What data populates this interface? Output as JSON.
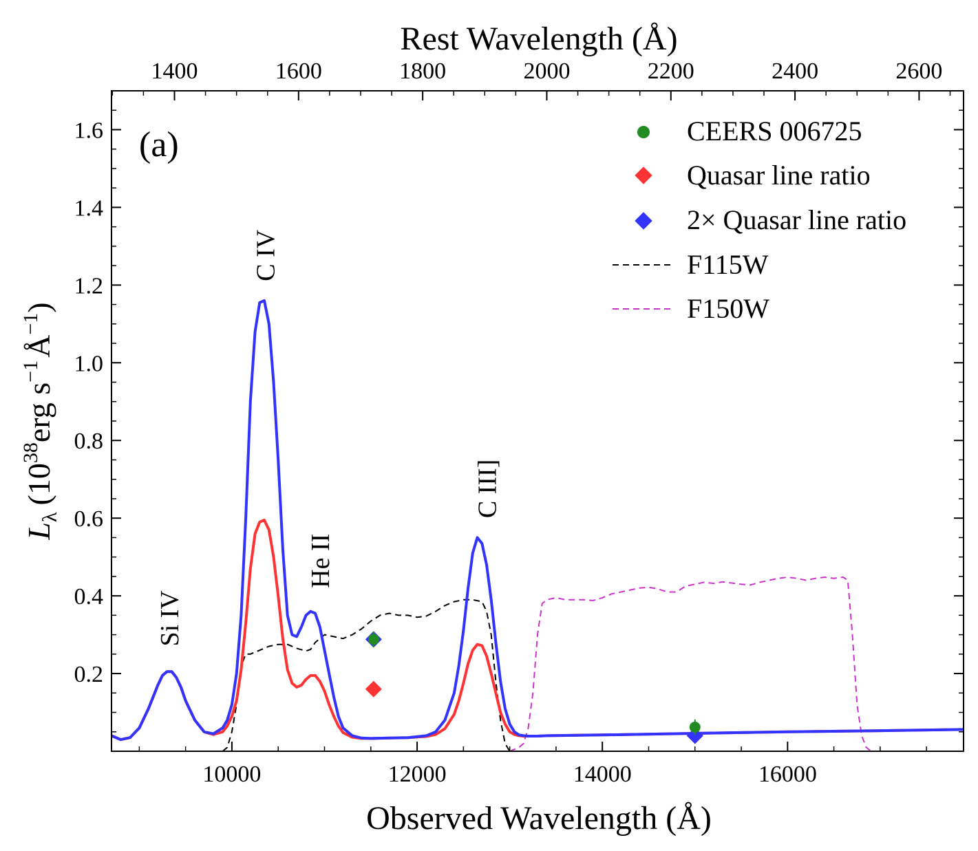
{
  "chart_data": {
    "type": "line",
    "panel_label": "(a)",
    "xlabel": "Observed Wavelength (Å)",
    "x2label": "Rest Wavelength (Å)",
    "ylabel_parts": [
      "L",
      "λ",
      "(10",
      "38",
      "erg s",
      "−1",
      "Å",
      "−1",
      ")"
    ],
    "xlim": [
      8700,
      17900
    ],
    "ylim": [
      0,
      1.7
    ],
    "x_ticks": [
      10000,
      12000,
      14000,
      16000
    ],
    "x_tick_labels": [
      "10000",
      "12000",
      "14000",
      "16000"
    ],
    "x2_ticks": [
      1400,
      1600,
      1800,
      2000,
      2200,
      2400,
      2600
    ],
    "x2_tick_labels": [
      "1400",
      "1600",
      "1800",
      "2000",
      "2200",
      "2400",
      "2600"
    ],
    "y_ticks": [
      0.2,
      0.4,
      0.6,
      0.8,
      1.0,
      1.2,
      1.4,
      1.6
    ],
    "y_tick_labels": [
      "0.2",
      "0.4",
      "0.6",
      "0.8",
      "1.0",
      "1.2",
      "1.4",
      "1.6"
    ],
    "series": [
      {
        "key": "blue_model",
        "color": "#3333ff",
        "style": "solid",
        "x": [
          8700,
          8800,
          8900,
          9000,
          9100,
          9200,
          9250,
          9300,
          9350,
          9400,
          9450,
          9500,
          9600,
          9700,
          9800,
          9900,
          9950,
          10000,
          10050,
          10100,
          10150,
          10200,
          10250,
          10300,
          10350,
          10400,
          10450,
          10500,
          10550,
          10600,
          10650,
          10700,
          10750,
          10800,
          10850,
          10900,
          10950,
          11000,
          11050,
          11100,
          11150,
          11200,
          11300,
          11400,
          11500,
          11700,
          11900,
          12100,
          12200,
          12300,
          12400,
          12450,
          12500,
          12550,
          12600,
          12650,
          12700,
          12750,
          12800,
          12850,
          12900,
          12950,
          13000,
          13050,
          13100,
          13150,
          13200,
          13300,
          13400,
          14000,
          15000,
          16000,
          17000,
          17900
        ],
        "y": [
          0.04,
          0.03,
          0.035,
          0.06,
          0.11,
          0.17,
          0.195,
          0.205,
          0.205,
          0.19,
          0.165,
          0.13,
          0.08,
          0.05,
          0.045,
          0.06,
          0.08,
          0.12,
          0.2,
          0.35,
          0.6,
          0.9,
          1.08,
          1.155,
          1.16,
          1.1,
          0.95,
          0.75,
          0.52,
          0.35,
          0.3,
          0.295,
          0.32,
          0.35,
          0.36,
          0.355,
          0.32,
          0.26,
          0.2,
          0.14,
          0.09,
          0.06,
          0.04,
          0.034,
          0.033,
          0.034,
          0.035,
          0.04,
          0.05,
          0.08,
          0.15,
          0.22,
          0.31,
          0.42,
          0.51,
          0.55,
          0.535,
          0.48,
          0.39,
          0.28,
          0.18,
          0.11,
          0.07,
          0.05,
          0.042,
          0.04,
          0.039,
          0.039,
          0.04,
          0.042,
          0.046,
          0.05,
          0.053,
          0.056
        ]
      },
      {
        "key": "red_model",
        "color": "#ff3333",
        "style": "solid",
        "x": [
          8700,
          8800,
          8900,
          9000,
          9100,
          9200,
          9250,
          9300,
          9350,
          9400,
          9450,
          9500,
          9600,
          9700,
          9800,
          9900,
          9950,
          10000,
          10050,
          10100,
          10150,
          10200,
          10250,
          10300,
          10350,
          10400,
          10450,
          10500,
          10550,
          10600,
          10650,
          10700,
          10750,
          10800,
          10850,
          10900,
          10950,
          11000,
          11050,
          11100,
          11150,
          11200,
          11300,
          11400,
          11500,
          11700,
          11900,
          12100,
          12200,
          12300,
          12400,
          12450,
          12500,
          12550,
          12600,
          12650,
          12700,
          12750,
          12800,
          12850,
          12900,
          12950,
          13000,
          13050,
          13100,
          13150,
          13200,
          13300,
          13400,
          14000,
          15000,
          16000,
          17000,
          17900
        ],
        "y": [
          0.04,
          0.03,
          0.035,
          0.06,
          0.11,
          0.17,
          0.195,
          0.205,
          0.205,
          0.19,
          0.165,
          0.13,
          0.08,
          0.05,
          0.043,
          0.05,
          0.065,
          0.09,
          0.13,
          0.21,
          0.33,
          0.47,
          0.56,
          0.59,
          0.595,
          0.57,
          0.5,
          0.4,
          0.29,
          0.21,
          0.175,
          0.165,
          0.17,
          0.185,
          0.195,
          0.195,
          0.18,
          0.155,
          0.12,
          0.09,
          0.065,
          0.048,
          0.036,
          0.033,
          0.033,
          0.034,
          0.035,
          0.038,
          0.043,
          0.058,
          0.095,
          0.13,
          0.175,
          0.225,
          0.26,
          0.275,
          0.272,
          0.245,
          0.2,
          0.15,
          0.1,
          0.07,
          0.05,
          0.043,
          0.04,
          0.039,
          0.039,
          0.039,
          0.04,
          0.042,
          0.046,
          0.05,
          0.053,
          0.056
        ]
      },
      {
        "key": "F115W",
        "name": "F115W",
        "color": "#000000",
        "style": "dashed",
        "x": [
          9900,
          9950,
          10000,
          10050,
          10100,
          10150,
          10200,
          10300,
          10400,
          10500,
          10600,
          10700,
          10800,
          10850,
          10900,
          11000,
          11100,
          11200,
          11300,
          11400,
          11500,
          11600,
          11700,
          11800,
          11900,
          12000,
          12100,
          12200,
          12300,
          12400,
          12500,
          12600,
          12700,
          12750,
          12800,
          12850,
          12900,
          12950,
          13000
        ],
        "y": [
          0.0,
          0.01,
          0.05,
          0.12,
          0.22,
          0.25,
          0.25,
          0.26,
          0.27,
          0.275,
          0.275,
          0.265,
          0.258,
          0.262,
          0.28,
          0.3,
          0.295,
          0.29,
          0.3,
          0.315,
          0.335,
          0.35,
          0.355,
          0.35,
          0.35,
          0.345,
          0.348,
          0.36,
          0.375,
          0.385,
          0.39,
          0.39,
          0.385,
          0.36,
          0.3,
          0.18,
          0.08,
          0.02,
          0.0
        ]
      },
      {
        "key": "F150W",
        "name": "F150W",
        "color": "#cc33cc",
        "style": "dashed",
        "x": [
          13000,
          13100,
          13150,
          13200,
          13250,
          13300,
          13350,
          13400,
          13500,
          13600,
          13700,
          13800,
          13900,
          14000,
          14100,
          14200,
          14300,
          14400,
          14500,
          14600,
          14700,
          14800,
          14900,
          15000,
          15100,
          15200,
          15300,
          15400,
          15500,
          15600,
          15700,
          15800,
          15900,
          16000,
          16100,
          16200,
          16300,
          16400,
          16500,
          16600,
          16650,
          16700,
          16750,
          16800,
          16850,
          16900
        ],
        "y": [
          0.0,
          0.01,
          0.02,
          0.06,
          0.15,
          0.3,
          0.38,
          0.39,
          0.395,
          0.39,
          0.39,
          0.39,
          0.388,
          0.395,
          0.405,
          0.41,
          0.415,
          0.42,
          0.422,
          0.418,
          0.41,
          0.41,
          0.425,
          0.43,
          0.435,
          0.432,
          0.436,
          0.433,
          0.43,
          0.428,
          0.435,
          0.44,
          0.445,
          0.448,
          0.445,
          0.44,
          0.445,
          0.448,
          0.445,
          0.448,
          0.44,
          0.3,
          0.12,
          0.04,
          0.01,
          0.0
        ]
      }
    ],
    "points": [
      {
        "key": "ceers",
        "name": "CEERS 006725",
        "marker": "circle",
        "color": "#228b22",
        "x": [
          11530,
          15000
        ],
        "y": [
          0.288,
          0.062
        ],
        "yerr": [
          0.02,
          0.02
        ]
      },
      {
        "key": "quasar",
        "name": "Quasar line ratio",
        "marker": "diamond",
        "color": "#ff3333",
        "x": [
          11530,
          15000
        ],
        "y": [
          0.16,
          0.04
        ]
      },
      {
        "key": "quasar2x",
        "name": "2× Quasar line ratio",
        "marker": "diamond",
        "color": "#3333ff",
        "x": [
          11530,
          15000
        ],
        "y": [
          0.288,
          0.04
        ]
      }
    ],
    "line_labels": [
      {
        "text": "Si IV",
        "x": 9330,
        "y": 0.27
      },
      {
        "text": "C IV",
        "x": 10370,
        "y": 1.21
      },
      {
        "text": "He II",
        "x": 10960,
        "y": 0.42
      },
      {
        "text": "C III]",
        "x": 12760,
        "y": 0.6
      }
    ],
    "legend": {
      "placement": "top-right",
      "entries": [
        "CEERS 006725",
        "Quasar line ratio",
        "2× Quasar line ratio",
        "F115W",
        "F150W"
      ]
    },
    "rest_frame_divisor": 6.7,
    "grid": false
  }
}
